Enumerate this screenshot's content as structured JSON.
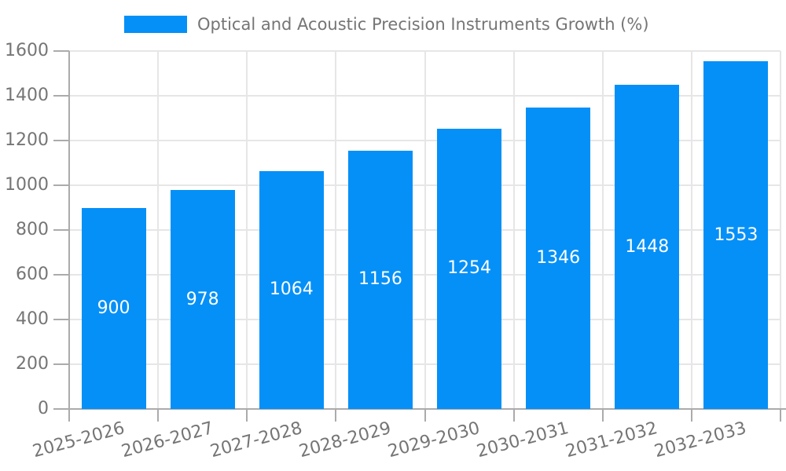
{
  "legend": {
    "label": "Optical and Acoustic Precision Instruments Growth (%)"
  },
  "chart_data": {
    "type": "bar",
    "title": "Optical and Acoustic Precision Instruments Growth (%)",
    "categories": [
      "2025-2026",
      "2026-2027",
      "2027-2028",
      "2028-2029",
      "2029-2030",
      "2030-2031",
      "2031-2032",
      "2032-2033"
    ],
    "values": [
      900,
      978,
      1064,
      1156,
      1254,
      1346,
      1448,
      1553
    ],
    "xlabel": "",
    "ylabel": "",
    "ylim": [
      0,
      1600
    ],
    "yticks": [
      0,
      200,
      400,
      600,
      800,
      1000,
      1200,
      1400,
      1600
    ],
    "grid": true,
    "legend_position": "top",
    "value_labels": "inside-center",
    "colors": {
      "bar": "#0590f8",
      "grid": "#e6e6e6",
      "axis": "#ababab",
      "tick_text": "#757575",
      "value_text": "#ffffff",
      "background": "#ffffff"
    }
  }
}
